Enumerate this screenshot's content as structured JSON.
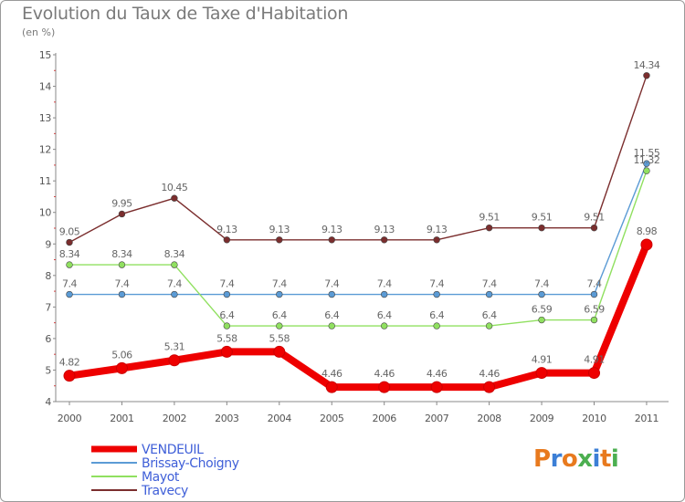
{
  "header": {
    "title": "Evolution du Taux de Taxe d'Habitation",
    "subtitle": "(en %)"
  },
  "logo": {
    "text": "Proxiti",
    "colors": [
      "#e87a1e",
      "#3c7fd6",
      "#e87a1e",
      "#4caf50",
      "#3c7fd6",
      "#e87a1e",
      "#4caf50"
    ]
  },
  "chart_data": {
    "type": "line",
    "title": "Evolution du Taux de Taxe d'Habitation",
    "subtitle": "(en %)",
    "xlabel": "",
    "ylabel": "",
    "x": [
      "2000",
      "2001",
      "2002",
      "2003",
      "2004",
      "2005",
      "2006",
      "2007",
      "2008",
      "2009",
      "2010",
      "2011"
    ],
    "ylim": [
      4,
      15
    ],
    "yticks": [
      4,
      5,
      6,
      7,
      8,
      9,
      10,
      11,
      12,
      13,
      14,
      15
    ],
    "grid": false,
    "legend_position": "bottom-left",
    "series": [
      {
        "name": "VENDEUIL",
        "color": "#ee0000",
        "values": [
          4.82,
          5.06,
          5.31,
          5.58,
          5.58,
          4.46,
          4.46,
          4.46,
          4.46,
          4.91,
          4.91,
          8.98
        ],
        "labels": [
          "4.82",
          "5.06",
          "5.31",
          "5.58",
          "5.58",
          "4.46",
          "4.46",
          "4.46",
          "4.46",
          "4.91",
          "4.91",
          "8.98"
        ]
      },
      {
        "name": "Brissay-Choigny",
        "color": "#5b9bd5",
        "values": [
          7.4,
          7.4,
          7.4,
          7.4,
          7.4,
          7.4,
          7.4,
          7.4,
          7.4,
          7.4,
          7.4,
          11.55
        ],
        "labels": [
          "7.4",
          "7.4",
          "7.4",
          "7.4",
          "7.4",
          "7.4",
          "7.4",
          "7.4",
          "7.4",
          "7.4",
          "7.4",
          "11.55"
        ]
      },
      {
        "name": "Mayot",
        "color": "#90e060",
        "values": [
          8.34,
          8.34,
          8.34,
          6.4,
          6.4,
          6.4,
          6.4,
          6.4,
          6.4,
          6.59,
          6.59,
          11.32
        ],
        "labels": [
          "8.34",
          "8.34",
          "8.34",
          "6.4",
          "6.4",
          "6.4",
          "6.4",
          "6.4",
          "6.4",
          "6.59",
          "6.59",
          "11.32"
        ]
      },
      {
        "name": "Travecy",
        "color": "#7b2e2e",
        "values": [
          9.05,
          9.95,
          10.45,
          9.13,
          9.13,
          9.13,
          9.13,
          9.13,
          9.51,
          9.51,
          9.51,
          14.34
        ],
        "labels": [
          "9.05",
          "9.95",
          "10.45",
          "9.13",
          "9.13",
          "9.13",
          "9.13",
          "9.13",
          "9.51",
          "9.51",
          "9.51",
          "14.34"
        ]
      }
    ]
  }
}
